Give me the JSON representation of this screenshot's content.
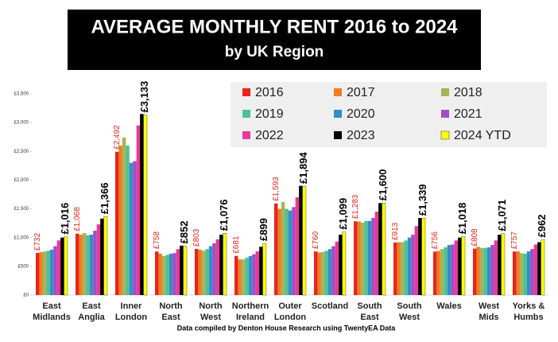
{
  "chart_data": {
    "type": "bar",
    "title": "AVERAGE MONTHLY RENT 2016 to 2024",
    "subtitle": "by UK Region",
    "note": "Data compiled by Denton House Research using TwentyEA Data",
    "categories": [
      [
        "East",
        "Midlands"
      ],
      [
        "East",
        "Anglia"
      ],
      [
        "Inner",
        "London"
      ],
      [
        "North",
        "East"
      ],
      [
        "North",
        "West"
      ],
      [
        "Northern",
        "Ireland"
      ],
      [
        "Outer",
        "London"
      ],
      [
        "Scotland"
      ],
      [
        "South",
        "East"
      ],
      [
        "South",
        "West"
      ],
      [
        "Wales"
      ],
      [
        "West",
        "Mids"
      ],
      [
        "Yorks &",
        "Humbs"
      ]
    ],
    "series": [
      {
        "name": "2016",
        "color": "#e8241c",
        "values": [
          732,
          1068,
          2492,
          758,
          803,
          681,
          1593,
          760,
          1283,
          913,
          756,
          808,
          757
        ],
        "value_labels": [
          "£732",
          "£1,068",
          "£2,492",
          "£758",
          "£803",
          "£681",
          "£1,593",
          "£760",
          "£1,283",
          "£913",
          "£756",
          "£808",
          "£757"
        ]
      },
      {
        "name": "2017",
        "color": "#f07d1f",
        "values": [
          745,
          1050,
          2600,
          720,
          790,
          620,
          1500,
          740,
          1280,
          920,
          770,
          840,
          760
        ]
      },
      {
        "name": "2018",
        "color": "#a8b35a",
        "values": [
          760,
          1080,
          2740,
          680,
          770,
          620,
          1620,
          750,
          1260,
          920,
          800,
          820,
          730
        ]
      },
      {
        "name": "2019",
        "color": "#4ec193",
        "values": [
          770,
          1040,
          2600,
          700,
          800,
          650,
          1500,
          770,
          1290,
          950,
          830,
          820,
          720
        ]
      },
      {
        "name": "2020",
        "color": "#2e8fc9",
        "values": [
          790,
          1050,
          2300,
          720,
          850,
          680,
          1470,
          800,
          1290,
          1000,
          870,
          830,
          760
        ]
      },
      {
        "name": "2021",
        "color": "#a14ec4",
        "values": [
          850,
          1120,
          2330,
          730,
          900,
          710,
          1530,
          850,
          1340,
          1050,
          880,
          870,
          800
        ]
      },
      {
        "name": "2022",
        "color": "#e8399a",
        "values": [
          950,
          1230,
          2950,
          800,
          970,
          760,
          1700,
          930,
          1450,
          1200,
          950,
          950,
          880
        ]
      },
      {
        "name": "2023",
        "color": "#000000",
        "values": [
          1000,
          1330,
          3150,
          860,
          1050,
          840,
          1900,
          1050,
          1600,
          1340,
          1000,
          1050,
          920
        ]
      },
      {
        "name": "2024 YTD",
        "color": "#ffff00",
        "values": [
          1016,
          1366,
          3133,
          852,
          1076,
          899,
          1894,
          1099,
          1600,
          1339,
          1018,
          1071,
          962
        ],
        "value_labels": [
          "£1,016",
          "£1,366",
          "£3,133",
          "£852",
          "£1,076",
          "£899",
          "£1,894",
          "£1,099",
          "£1,600",
          "£1,339",
          "£1,018",
          "£1,071",
          "£962"
        ]
      }
    ],
    "ylim": [
      0,
      3500
    ],
    "yticks": [
      {
        "value": 0,
        "label": "£0"
      },
      {
        "value": 500,
        "label": "£500"
      },
      {
        "value": 1000,
        "label": "£1,000"
      },
      {
        "value": 1500,
        "label": "£1,500"
      },
      {
        "value": 2000,
        "label": "£2,000"
      },
      {
        "value": 2500,
        "label": "£2,500"
      },
      {
        "value": 3000,
        "label": "£3,000"
      },
      {
        "value": 3500,
        "label": "£3,500"
      }
    ],
    "grid": false
  }
}
